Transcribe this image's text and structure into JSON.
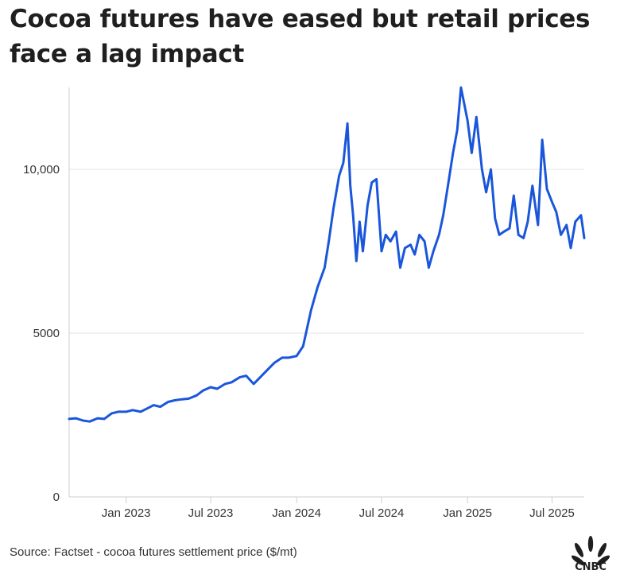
{
  "title": "Cocoa futures have eased but retail prices face a lag impact",
  "source": "Source: Factset - cocoa futures settlement price ($/mt)",
  "logo_text": "CNBC",
  "colors": {
    "line": "#1a56db",
    "grid": "#e3e3e3",
    "axis": "#cfcfcf"
  },
  "chart_data": {
    "type": "line",
    "title": "Cocoa futures have eased but retail prices face a lag impact",
    "xlabel": "",
    "ylabel": "",
    "ylim": [
      0,
      12500
    ],
    "yticks": [
      0,
      5000,
      10000
    ],
    "ytick_labels": [
      "0",
      "5000",
      "10,000"
    ],
    "xlim": [
      "2022-09-01",
      "2025-09-08"
    ],
    "xticks": [
      "2023-01-01",
      "2023-07-01",
      "2024-01-01",
      "2024-07-01",
      "2025-01-01",
      "2025-07-01"
    ],
    "xtick_labels": [
      "Jan 2023",
      "Jul 2023",
      "Jan 2024",
      "Jul 2024",
      "Jan 2025",
      "Jul 2025"
    ],
    "grid": "horizontal",
    "series": [
      {
        "name": "",
        "x": [
          "2022-09-01",
          "2022-09-15",
          "2022-10-01",
          "2022-10-15",
          "2022-11-01",
          "2022-11-15",
          "2022-12-01",
          "2022-12-15",
          "2023-01-01",
          "2023-01-15",
          "2023-02-01",
          "2023-02-15",
          "2023-03-01",
          "2023-03-15",
          "2023-04-01",
          "2023-04-15",
          "2023-05-01",
          "2023-05-15",
          "2023-06-01",
          "2023-06-15",
          "2023-07-01",
          "2023-07-15",
          "2023-08-01",
          "2023-08-15",
          "2023-09-01",
          "2023-09-15",
          "2023-10-01",
          "2023-10-15",
          "2023-11-01",
          "2023-11-15",
          "2023-12-01",
          "2023-12-15",
          "2024-01-01",
          "2024-01-15",
          "2024-02-01",
          "2024-02-15",
          "2024-03-01",
          "2024-03-10",
          "2024-03-20",
          "2024-04-01",
          "2024-04-10",
          "2024-04-19",
          "2024-04-25",
          "2024-05-01",
          "2024-05-08",
          "2024-05-15",
          "2024-05-22",
          "2024-06-01",
          "2024-06-10",
          "2024-06-20",
          "2024-07-01",
          "2024-07-10",
          "2024-07-20",
          "2024-08-01",
          "2024-08-10",
          "2024-08-20",
          "2024-09-01",
          "2024-09-10",
          "2024-09-20",
          "2024-10-01",
          "2024-10-10",
          "2024-10-20",
          "2024-11-01",
          "2024-11-10",
          "2024-11-20",
          "2024-12-01",
          "2024-12-10",
          "2024-12-18",
          "2025-01-01",
          "2025-01-10",
          "2025-01-20",
          "2025-02-01",
          "2025-02-10",
          "2025-02-20",
          "2025-03-01",
          "2025-03-10",
          "2025-03-20",
          "2025-04-01",
          "2025-04-10",
          "2025-04-20",
          "2025-05-01",
          "2025-05-10",
          "2025-05-20",
          "2025-06-01",
          "2025-06-10",
          "2025-06-20",
          "2025-07-01",
          "2025-07-10",
          "2025-07-20",
          "2025-08-01",
          "2025-08-10",
          "2025-08-20",
          "2025-09-01",
          "2025-09-08"
        ],
        "y": [
          2380,
          2400,
          2330,
          2300,
          2400,
          2380,
          2550,
          2600,
          2600,
          2650,
          2600,
          2700,
          2800,
          2750,
          2900,
          2950,
          2980,
          3000,
          3100,
          3250,
          3350,
          3300,
          3450,
          3500,
          3650,
          3700,
          3450,
          3650,
          3900,
          4100,
          4250,
          4250,
          4300,
          4600,
          5700,
          6400,
          7000,
          7800,
          8800,
          9800,
          10200,
          11400,
          9500,
          8600,
          7200,
          8400,
          7500,
          8900,
          9600,
          9700,
          7500,
          8000,
          7800,
          8100,
          7000,
          7600,
          7700,
          7400,
          8000,
          7800,
          7000,
          7500,
          8000,
          8600,
          9500,
          10500,
          11200,
          12500,
          11500,
          10500,
          11600,
          10000,
          9300,
          10000,
          8500,
          8000,
          8100,
          8200,
          9200,
          8000,
          7900,
          8400,
          9500,
          8300,
          10900,
          9400,
          9000,
          8700,
          8000,
          8300,
          7600,
          8400,
          8600,
          7900
        ]
      }
    ]
  }
}
